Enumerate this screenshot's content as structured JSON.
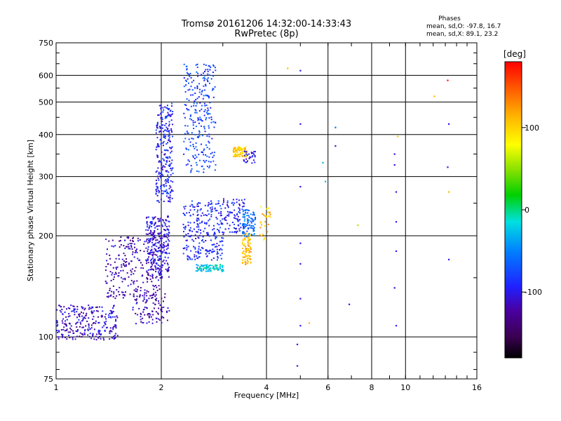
{
  "header": {
    "title_line1": "Tromsø 20161206 14:32:00-14:33:43",
    "title_line2": "RwPretec (8p)",
    "stats_title": "Phases",
    "stats_line_0": "mean, sd,O: -97.8, 16.7",
    "stats_line_x": "mean, sd,X:  89.1, 23.2"
  },
  "colorbar": {
    "unit_label": "[deg]",
    "range": [
      -180,
      180
    ],
    "tick_labels": [
      "100",
      "0",
      "-100"
    ],
    "tick_values": [
      100,
      0,
      -100
    ]
  },
  "chart_data": {
    "type": "scatter",
    "title": "Tromsø 20161206 14:32:00-14:33:43",
    "subtitle": "RwPretec (8p)",
    "xlabel": "Frequency [MHz]",
    "ylabel": "Stationary phase Virtual Height [km]",
    "x_scale": "log",
    "y_scale": "log",
    "xlim": [
      1,
      16
    ],
    "ylim": [
      75,
      750
    ],
    "x_ticks": [
      1,
      2,
      4,
      6,
      8,
      10,
      16
    ],
    "y_ticks": [
      75,
      100,
      200,
      300,
      400,
      500,
      600,
      750
    ],
    "grid": true,
    "colorscale": "rainbow phase (black at -180, purple/blue at -100, cyan/green near 0, yellow at 100, red at 180)",
    "colorbar_label": "[deg]",
    "clusters": [
      {
        "x_range": [
          1.0,
          1.5
        ],
        "y_range": [
          98,
          125
        ],
        "phase": -110,
        "density": "dense"
      },
      {
        "x_range": [
          1.38,
          2.0
        ],
        "y_range": [
          130,
          200
        ],
        "phase": -120,
        "density": "dense"
      },
      {
        "x_range": [
          1.65,
          2.1
        ],
        "y_range": [
          110,
          135
        ],
        "phase": -120,
        "density": "medium"
      },
      {
        "x_range": [
          1.8,
          2.1
        ],
        "y_range": [
          150,
          230
        ],
        "phase": -105,
        "density": "dense"
      },
      {
        "x_range": [
          1.92,
          2.15
        ],
        "y_range": [
          250,
          500
        ],
        "phase": -95,
        "density": "dense"
      },
      {
        "x_range": [
          2.3,
          2.85
        ],
        "y_range": [
          310,
          650
        ],
        "phase": -80,
        "density": "dense"
      },
      {
        "x_range": [
          2.3,
          3.0
        ],
        "y_range": [
          170,
          255
        ],
        "phase": -90,
        "density": "dense"
      },
      {
        "x_range": [
          2.5,
          3.0
        ],
        "y_range": [
          157,
          165
        ],
        "phase": -20,
        "density": "medium"
      },
      {
        "x_range": [
          3.0,
          3.45
        ],
        "y_range": [
          205,
          265
        ],
        "phase": -95,
        "density": "medium"
      },
      {
        "x_range": [
          3.2,
          3.5
        ],
        "y_range": [
          345,
          370
        ],
        "phase": 105,
        "density": "medium"
      },
      {
        "x_range": [
          3.4,
          3.6
        ],
        "y_range": [
          165,
          205
        ],
        "phase": 110,
        "density": "medium"
      },
      {
        "x_range": [
          3.4,
          3.7
        ],
        "y_range": [
          200,
          240
        ],
        "phase": -60,
        "density": "medium"
      },
      {
        "x_range": [
          3.4,
          3.7
        ],
        "y_range": [
          330,
          360
        ],
        "phase": -100,
        "density": "sparse"
      },
      {
        "x_range": [
          3.8,
          4.1
        ],
        "y_range": [
          195,
          250
        ],
        "phase": 110,
        "density": "sparse"
      }
    ],
    "isolated_points": [
      {
        "x": 4.6,
        "y": 630,
        "phase": 110
      },
      {
        "x": 5.0,
        "y": 620,
        "phase": -100
      },
      {
        "x": 5.0,
        "y": 430,
        "phase": -100
      },
      {
        "x": 5.0,
        "y": 280,
        "phase": -100
      },
      {
        "x": 5.0,
        "y": 190,
        "phase": -100
      },
      {
        "x": 5.0,
        "y": 165,
        "phase": -100
      },
      {
        "x": 5.0,
        "y": 130,
        "phase": -100
      },
      {
        "x": 5.0,
        "y": 108,
        "phase": -100
      },
      {
        "x": 4.9,
        "y": 95,
        "phase": -100
      },
      {
        "x": 4.9,
        "y": 82,
        "phase": -100
      },
      {
        "x": 5.3,
        "y": 110,
        "phase": 110
      },
      {
        "x": 5.8,
        "y": 330,
        "phase": -30
      },
      {
        "x": 5.9,
        "y": 290,
        "phase": -30
      },
      {
        "x": 6.3,
        "y": 420,
        "phase": -60
      },
      {
        "x": 6.3,
        "y": 370,
        "phase": -100
      },
      {
        "x": 6.9,
        "y": 125,
        "phase": -100
      },
      {
        "x": 7.3,
        "y": 215,
        "phase": 60
      },
      {
        "x": 9.3,
        "y": 350,
        "phase": -100
      },
      {
        "x": 9.3,
        "y": 325,
        "phase": -100
      },
      {
        "x": 9.4,
        "y": 270,
        "phase": -100
      },
      {
        "x": 9.4,
        "y": 220,
        "phase": -100
      },
      {
        "x": 9.4,
        "y": 180,
        "phase": -100
      },
      {
        "x": 9.3,
        "y": 140,
        "phase": -100
      },
      {
        "x": 9.4,
        "y": 108,
        "phase": -100
      },
      {
        "x": 9.5,
        "y": 395,
        "phase": 110
      },
      {
        "x": 12.1,
        "y": 520,
        "phase": 110
      },
      {
        "x": 13.2,
        "y": 580,
        "phase": 170
      },
      {
        "x": 13.3,
        "y": 430,
        "phase": -100
      },
      {
        "x": 13.2,
        "y": 320,
        "phase": -100
      },
      {
        "x": 13.3,
        "y": 270,
        "phase": 110
      },
      {
        "x": 13.3,
        "y": 170,
        "phase": -100
      }
    ]
  }
}
